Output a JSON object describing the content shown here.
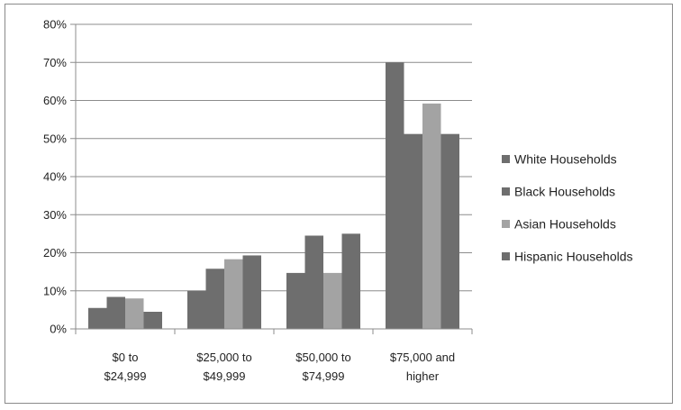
{
  "chart_data": {
    "type": "bar",
    "title": "",
    "xlabel": "",
    "ylabel": "",
    "categories": [
      [
        "$0 to",
        "$24,999"
      ],
      [
        "$25,000 to",
        "$49,999"
      ],
      [
        "$50,000 to",
        "$74,999"
      ],
      [
        "$75,000 and",
        "higher"
      ]
    ],
    "series": [
      {
        "name": "White Households",
        "color": "#6e6e6e",
        "values": [
          5.5,
          10,
          14.7,
          70
        ]
      },
      {
        "name": "Black Households",
        "color": "#6e6e6e",
        "values": [
          8.4,
          15.8,
          24.5,
          51.2
        ]
      },
      {
        "name": "Asian Households",
        "color": "#a3a3a3",
        "values": [
          8.0,
          18.3,
          14.7,
          59.2
        ]
      },
      {
        "name": "Hispanic Households",
        "color": "#6e6e6e",
        "values": [
          4.5,
          19.3,
          25,
          51.2
        ]
      }
    ],
    "ylim": [
      0,
      80
    ],
    "yticks": [
      "0%",
      "10%",
      "20%",
      "30%",
      "40%",
      "50%",
      "60%",
      "70%",
      "80%"
    ],
    "grid": true,
    "legend_position": "right"
  }
}
